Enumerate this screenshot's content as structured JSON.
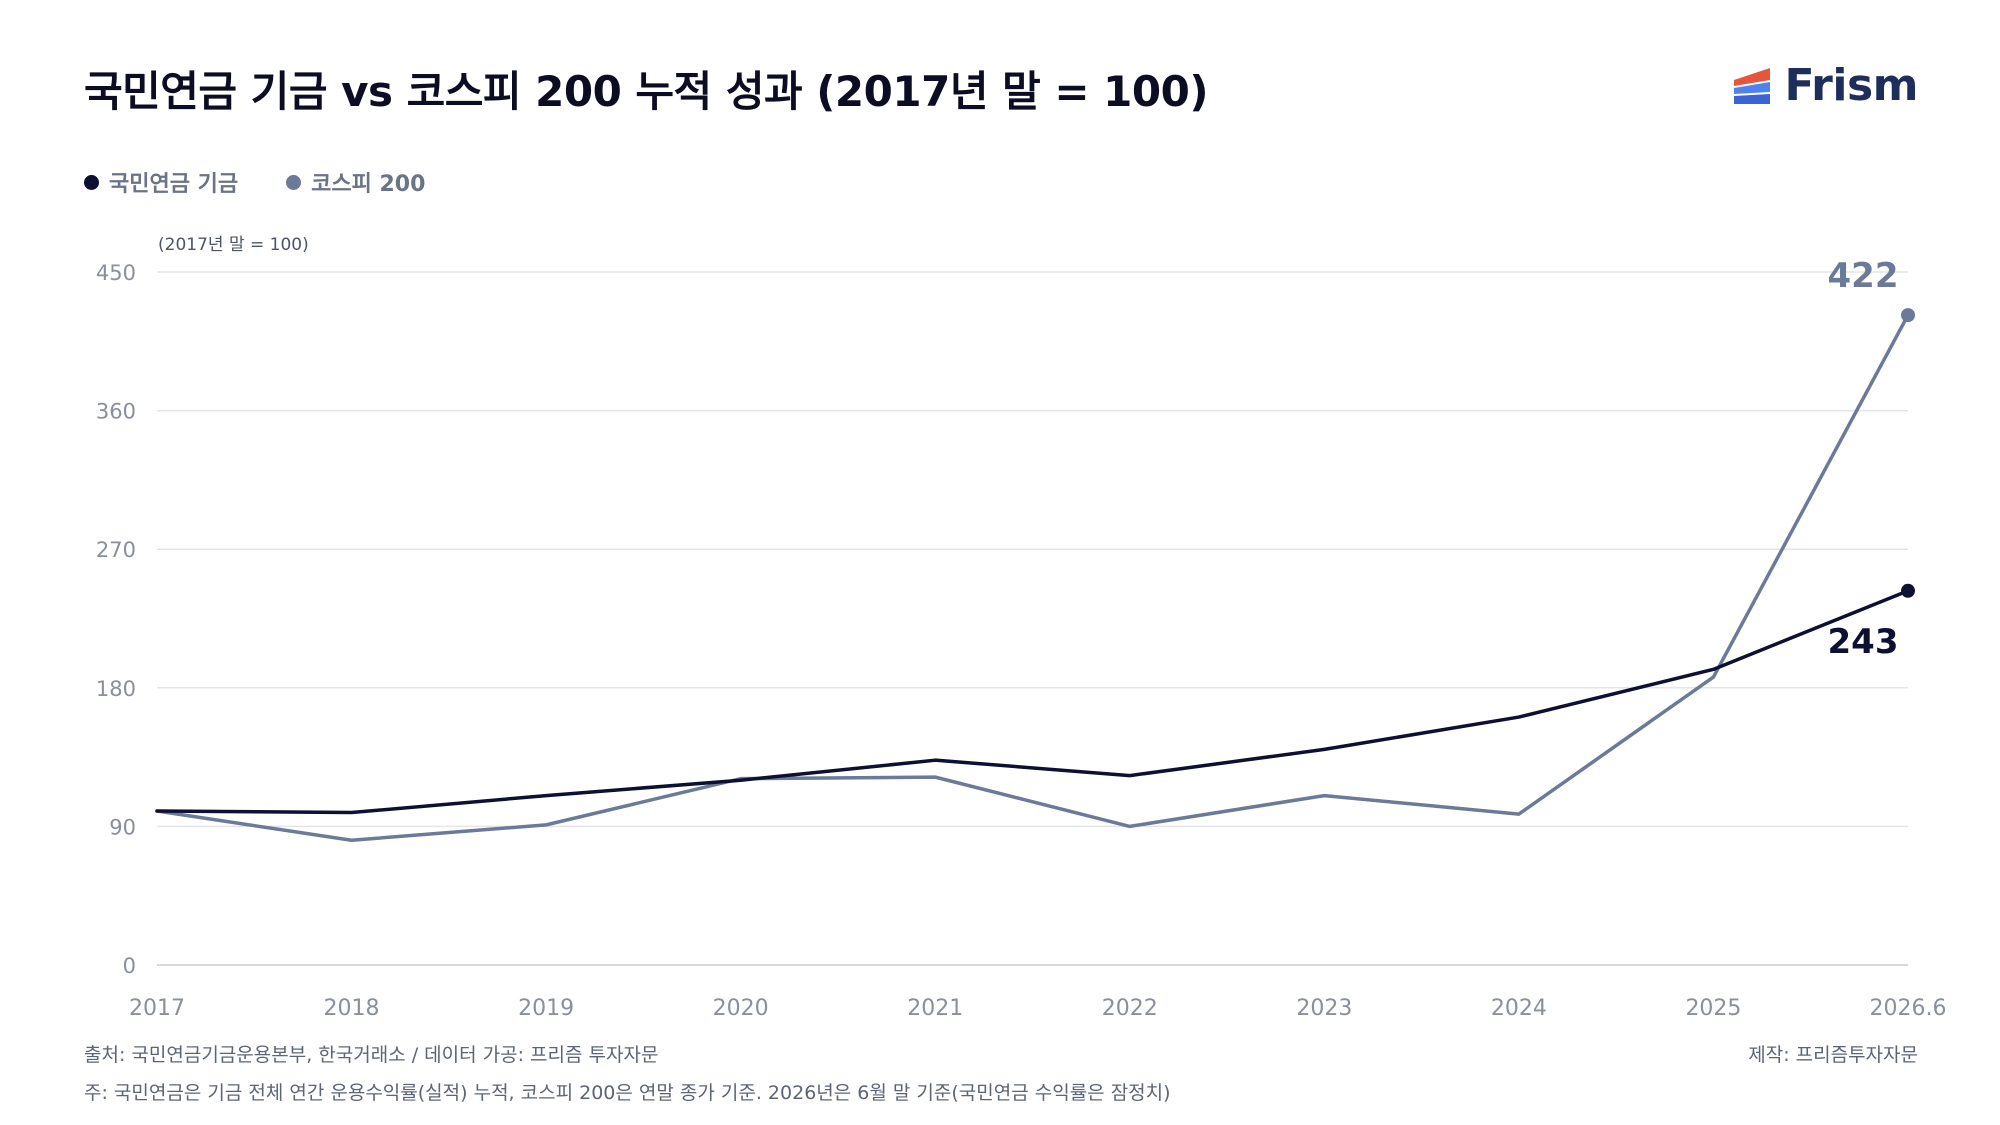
{
  "title": "국민연금 기금 vs 코스피 200 누적 성과 (2017년 말 = 100)",
  "brand": {
    "name": "Frism",
    "icon": "frism-logo-icon",
    "colors": [
      "#e4573d",
      "#4e82f0",
      "#3a63d8"
    ]
  },
  "source_note": "출처: 국민연금기금운용본부, 한국거래소 / 데이터 가공: 프리즘 투자자문",
  "producer_note": "제작: 프리즘투자자문",
  "footnote": "주: 국민연금은 기금 전체 연간 운용수익률(실적) 누적, 코스피 200은 연말 종가 기준. 2026년은 6월 말 기준(국민연금 수익률은 잠정치)",
  "chart_data": {
    "type": "line",
    "title": "국민연금 기금 vs 코스피 200 누적 성과 (2017년 말 = 100)",
    "unit_label": "(2017년 말 = 100)",
    "categories": [
      "2017",
      "2018",
      "2019",
      "2020",
      "2021",
      "2022",
      "2023",
      "2024",
      "2025",
      "2026.6"
    ],
    "ylim": [
      0,
      450
    ],
    "yticks": [
      0,
      90,
      180,
      270,
      360,
      450
    ],
    "grid": true,
    "legend_position": "top-left",
    "series": [
      {
        "name": "국민연금 기금",
        "color": "#0d0f33",
        "values": [
          100,
          99,
          110,
          120,
          133,
          123,
          140,
          161,
          192,
          243
        ],
        "end_label": "243"
      },
      {
        "name": "코스피 200",
        "color": "#6b7a99",
        "values": [
          100,
          81,
          91,
          121,
          122,
          90,
          110,
          98,
          187,
          422
        ],
        "end_label": "422"
      }
    ]
  }
}
